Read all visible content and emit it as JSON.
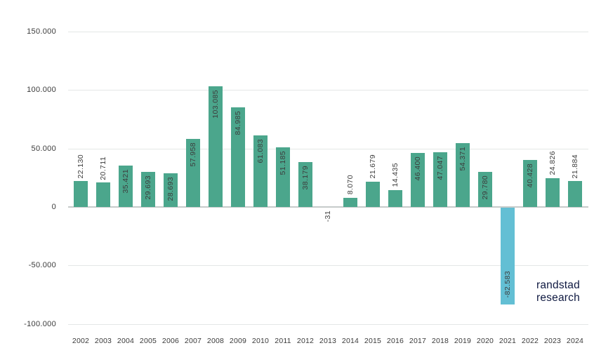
{
  "branding": {
    "line1": "randstad",
    "line2": "research",
    "color": "#0f1941"
  },
  "chart_data": {
    "type": "bar",
    "title": "",
    "xlabel": "",
    "ylabel": "",
    "grid": true,
    "legend": false,
    "ylim": [
      -100000,
      150000
    ],
    "categories": [
      "2002",
      "2003",
      "2004",
      "2005",
      "2006",
      "2007",
      "2008",
      "2009",
      "2010",
      "2011",
      "2012",
      "2013",
      "2014",
      "2015",
      "2016",
      "2017",
      "2018",
      "2019",
      "2020",
      "2021",
      "2022",
      "2023",
      "2024"
    ],
    "values": [
      22130,
      20711,
      35421,
      29693,
      28693,
      57958,
      103085,
      84985,
      61083,
      51185,
      38179,
      -31,
      8070,
      21679,
      14435,
      46400,
      47047,
      54371,
      29780,
      -82583,
      40428,
      24826,
      21884
    ],
    "value_labels": [
      "22.130",
      "20.711",
      "35.421",
      "29.693",
      "28.693",
      "57.958",
      "103.085",
      "84.985",
      "61.083",
      "51.185",
      "38.179",
      "-31",
      "8.070",
      "21.679",
      "14.435",
      "46.400",
      "47.047",
      "54.371",
      "29.780",
      "-82.583",
      "40.428",
      "24.826",
      "21.884"
    ],
    "ytick_values": [
      150000,
      100000,
      50000,
      0,
      -50000,
      -100000
    ],
    "ytick_labels": [
      "150.000",
      "100.000",
      "50.000",
      "0",
      "-50.000",
      "-100.000"
    ],
    "bar_color": "#4ba68c",
    "highlight_year": "2021",
    "highlight_color": "#63bfd4",
    "gridline_color": "#e4e7e6",
    "zero_line_color": "#c6cbca",
    "label_color": "#3c3c3c"
  }
}
